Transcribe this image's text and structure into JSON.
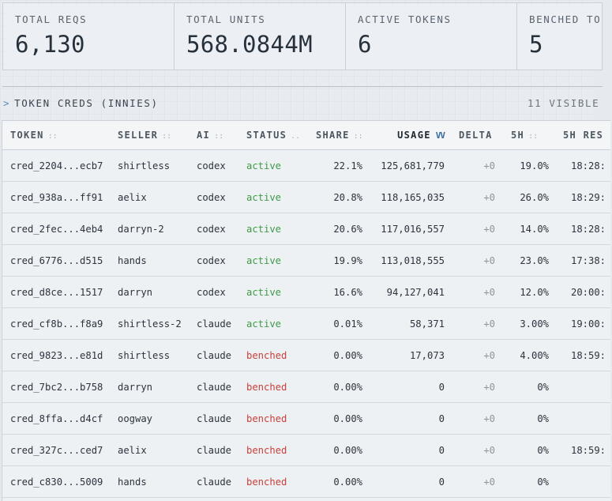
{
  "stats": [
    {
      "label": "TOTAL REQS",
      "value": "6,130"
    },
    {
      "label": "TOTAL UNITS",
      "value": "568.0844M"
    },
    {
      "label": "ACTIVE TOKENS",
      "value": "6"
    },
    {
      "label": "BENCHED TO",
      "value": "5"
    }
  ],
  "section": {
    "chevron": ">",
    "title": "TOKEN CREDS (INNIES)",
    "count": "11 VISIBLE"
  },
  "table": {
    "headers": {
      "token": "TOKEN",
      "seller": "SELLER",
      "ai": "AI",
      "status": "STATUS",
      "share": "SHARE",
      "usage": "USAGE",
      "delta": "DELTA",
      "five": "5H",
      "reset": "5H RES"
    },
    "grip": "::",
    "grip_status": "..",
    "sort_indicator": "VV",
    "rows": [
      {
        "token": "cred_2204...ecb7",
        "seller": "shirtless",
        "ai": "codex",
        "status": "active",
        "share": "22.1%",
        "usage": "125,681,779",
        "delta": "+0",
        "five": "19.0%",
        "reset": "18:28:"
      },
      {
        "token": "cred_938a...ff91",
        "seller": "aelix",
        "ai": "codex",
        "status": "active",
        "share": "20.8%",
        "usage": "118,165,035",
        "delta": "+0",
        "five": "26.0%",
        "reset": "18:29:"
      },
      {
        "token": "cred_2fec...4eb4",
        "seller": "darryn-2",
        "ai": "codex",
        "status": "active",
        "share": "20.6%",
        "usage": "117,016,557",
        "delta": "+0",
        "five": "14.0%",
        "reset": "18:28:"
      },
      {
        "token": "cred_6776...d515",
        "seller": "hands",
        "ai": "codex",
        "status": "active",
        "share": "19.9%",
        "usage": "113,018,555",
        "delta": "+0",
        "five": "23.0%",
        "reset": "17:38:"
      },
      {
        "token": "cred_d8ce...1517",
        "seller": "darryn",
        "ai": "codex",
        "status": "active",
        "share": "16.6%",
        "usage": "94,127,041",
        "delta": "+0",
        "five": "12.0%",
        "reset": "20:00:"
      },
      {
        "token": "cred_cf8b...f8a9",
        "seller": "shirtless-2",
        "ai": "claude",
        "status": "active",
        "share": "0.01%",
        "usage": "58,371",
        "delta": "+0",
        "five": "3.00%",
        "reset": "19:00:"
      },
      {
        "token": "cred_9823...e81d",
        "seller": "shirtless",
        "ai": "claude",
        "status": "benched",
        "share": "0.00%",
        "usage": "17,073",
        "delta": "+0",
        "five": "4.00%",
        "reset": "18:59:"
      },
      {
        "token": "cred_7bc2...b758",
        "seller": "darryn",
        "ai": "claude",
        "status": "benched",
        "share": "0.00%",
        "usage": "0",
        "delta": "+0",
        "five": "0%",
        "reset": ""
      },
      {
        "token": "cred_8ffa...d4cf",
        "seller": "oogway",
        "ai": "claude",
        "status": "benched",
        "share": "0.00%",
        "usage": "0",
        "delta": "+0",
        "five": "0%",
        "reset": ""
      },
      {
        "token": "cred_327c...ced7",
        "seller": "aelix",
        "ai": "claude",
        "status": "benched",
        "share": "0.00%",
        "usage": "0",
        "delta": "+0",
        "five": "0%",
        "reset": "18:59:"
      },
      {
        "token": "cred_c830...5009",
        "seller": "hands",
        "ai": "claude",
        "status": "benched",
        "share": "0.00%",
        "usage": "0",
        "delta": "+0",
        "five": "0%",
        "reset": ""
      }
    ]
  },
  "colors": {
    "active": "#3f9a49",
    "benched": "#c8403a",
    "accent": "#5b8bb5"
  }
}
